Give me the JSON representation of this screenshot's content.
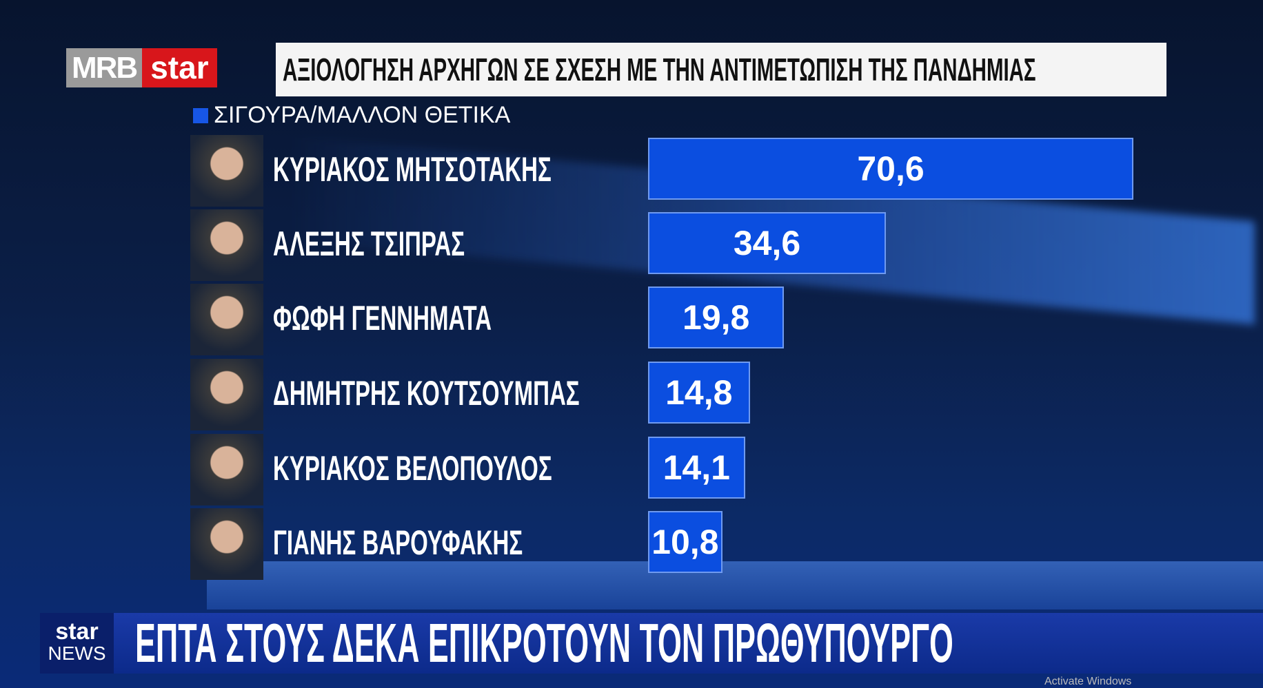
{
  "logo": {
    "brand1": "MRB",
    "brand2": "star"
  },
  "title": "ΑΞΙΟΛΟΓΗΣΗ ΑΡΧΗΓΩΝ ΣΕ ΣΧΕΣΗ ΜΕ ΤΗΝ ΑΝΤΙΜΕΤΩΠΙΣΗ ΤΗΣ ΠΑΝΔΗΜΙΑΣ",
  "chart_data": {
    "type": "bar",
    "orientation": "horizontal",
    "title": "ΑΞΙΟΛΟΓΗΣΗ ΑΡΧΗΓΩΝ ΣΕ ΣΧΕΣΗ ΜΕ ΤΗΝ ΑΝΤΙΜΕΤΩΠΙΣΗ ΤΗΣ ΠΑΝΔΗΜΙΑΣ",
    "legend": "top-left",
    "categories": [
      "ΚΥΡΙΑΚΟΣ ΜΗΤΣΟΤΑΚΗΣ",
      "ΑΛΕΞΗΣ ΤΣΙΠΡΑΣ",
      "ΦΩΦΗ ΓΕΝΝΗΜΑΤΑ",
      "ΔΗΜΗΤΡΗΣ ΚΟΥΤΣΟΥΜΠΑΣ",
      "ΚΥΡΙΑΚΟΣ ΒΕΛΟΠΟΥΛΟΣ",
      "ΓΙΑΝΗΣ ΒΑΡΟΥΦΑΚΗΣ"
    ],
    "series": [
      {
        "name": "ΣΙΓΟΥΡΑ/ΜΑΛΛΟΝ ΘΕΤΙΚΑ",
        "color": "#0b4ee0",
        "values": [
          70.6,
          34.6,
          19.8,
          14.8,
          14.1,
          10.8
        ]
      }
    ],
    "data_labels": [
      "70,6",
      "34,6",
      "19,8",
      "14,8",
      "14,1",
      "10,8"
    ],
    "grid": false
  },
  "footer": {
    "channel_top": "star",
    "channel_bottom": "NEWS",
    "headline": "ΕΠΤΑ ΣΤΟΥΣ ΔΕΚΑ ΕΠΙΚΡΟΤΟΥΝ ΤΟΝ ΠΡΩΘΥΠΟΥΡΓΟ",
    "watermark": "Activate Windows"
  }
}
